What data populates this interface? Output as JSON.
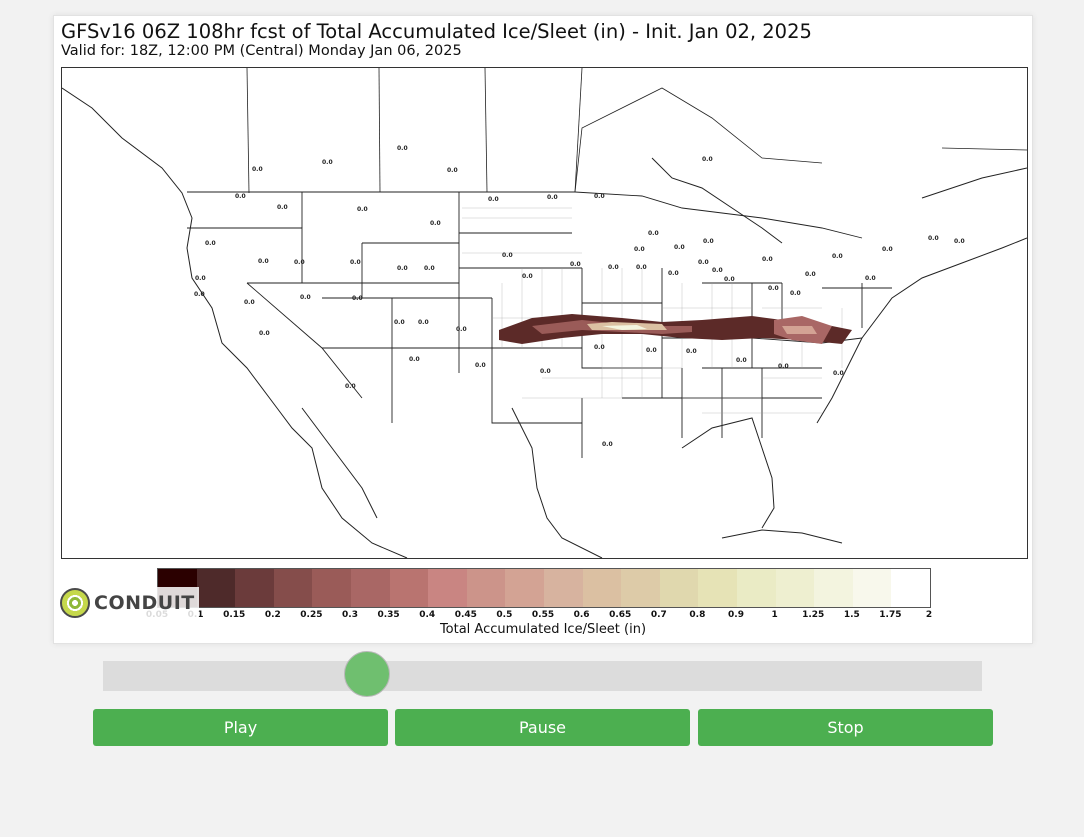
{
  "map": {
    "title": "GFSv16 06Z 108hr fcst of Total Accumulated Ice/Sleet (in) - Init. Jan 02, 2025",
    "subtitle": "Valid for: 18Z, 12:00 PM (Central) Monday Jan 06, 2025",
    "value_labels": [
      "0.0",
      "0.0",
      "0.0",
      "0.0",
      "0.0",
      "0.0",
      "0.0",
      "0.0",
      "0.0",
      "0.0",
      "0.0",
      "0.0",
      "0.0",
      "0.0",
      "0.0",
      "0.0",
      "0.0",
      "0.0",
      "0.0",
      "0.0",
      "0.0",
      "0.0",
      "0.0",
      "0.0",
      "0.0",
      "0.0",
      "0.0",
      "0.0",
      "0.0",
      "0.0",
      "0.0",
      "0.0",
      "0.0",
      "0.0",
      "0.0",
      "0.0",
      "0.0",
      "0.0",
      "0.0",
      "0.0",
      "0.0",
      "0.0",
      "0.0",
      "0.0",
      "0.0",
      "0.0",
      "0.0",
      "0.0",
      "0.0",
      "0.0",
      "0.0",
      "0.0",
      "0.0",
      "0.0",
      "0.0",
      "0.0",
      "0.0",
      "0.0",
      "0.0",
      "0.0"
    ]
  },
  "colorbar": {
    "label": "Total Accumulated Ice/Sleet (in)",
    "ticks": [
      "0.05",
      "0.1",
      "0.15",
      "0.2",
      "0.25",
      "0.3",
      "0.35",
      "0.4",
      "0.45",
      "0.5",
      "0.55",
      "0.6",
      "0.65",
      "0.7",
      "0.8",
      "0.9",
      "1",
      "1.25",
      "1.5",
      "1.75",
      "2"
    ],
    "colors": [
      "#2b0000",
      "#4e2a2a",
      "#6b3b3b",
      "#854d4b",
      "#9a5b58",
      "#a96765",
      "#b97470",
      "#c98582",
      "#cc948a",
      "#d3a394",
      "#d7b39f",
      "#dbc0a2",
      "#ddcba8",
      "#e0d8ae",
      "#e6e3b6",
      "#eaebc5",
      "#eeefd0",
      "#f3f4df",
      "#f8f8ec",
      "#ffffff"
    ]
  },
  "logo": {
    "text": "CONDUIT"
  },
  "controls": {
    "slider_value": 0.3,
    "play_label": "Play",
    "pause_label": "Pause",
    "stop_label": "Stop"
  }
}
